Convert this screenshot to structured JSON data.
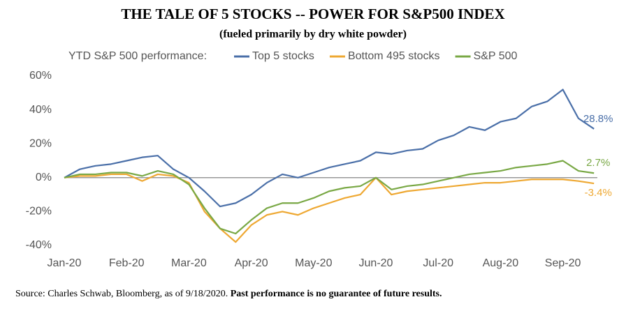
{
  "chart_data": {
    "type": "line",
    "title": "THE TALE OF 5 STOCKS -- POWER FOR S&P500 INDEX",
    "subtitle": "(fueled primarily by dry white powder)",
    "legend_title": "YTD S&P 500 performance:",
    "categories": [
      "Jan-20",
      null,
      null,
      null,
      "Feb-20",
      null,
      null,
      null,
      "Mar-20",
      null,
      null,
      null,
      "Apr-20",
      null,
      null,
      null,
      "May-20",
      null,
      null,
      null,
      "Jun-20",
      null,
      null,
      null,
      "Jul-20",
      null,
      null,
      null,
      "Aug-20",
      null,
      null,
      null,
      "Sep-20",
      null,
      null
    ],
    "series": [
      {
        "name": "Top 5 stocks",
        "color": "#4a6fa8",
        "values": [
          0,
          5,
          7,
          8,
          10,
          12,
          13,
          5,
          0,
          -8,
          -17,
          -15,
          -10,
          -3,
          2,
          0,
          3,
          6,
          8,
          10,
          15,
          14,
          16,
          17,
          22,
          25,
          30,
          28,
          33,
          35,
          42,
          45,
          52,
          35,
          28.8
        ],
        "value_labels": [
          null,
          null,
          null,
          null,
          null,
          null,
          null,
          null,
          null,
          null,
          null,
          null,
          null,
          null,
          null,
          null,
          null,
          null,
          null,
          null,
          null,
          null,
          null,
          null,
          null,
          null,
          null,
          null,
          null,
          null,
          null,
          null,
          null,
          null,
          "28.8%"
        ]
      },
      {
        "name": "Bottom 495 stocks",
        "color": "#eea832",
        "values": [
          0,
          1,
          1,
          2,
          2,
          -2,
          2,
          1,
          -3,
          -20,
          -30,
          -38,
          -28,
          -22,
          -20,
          -22,
          -18,
          -15,
          -12,
          -10,
          0,
          -10,
          -8,
          -7,
          -6,
          -5,
          -4,
          -3,
          -3,
          -2,
          -1,
          -1,
          -1,
          -2,
          -3.4
        ],
        "value_labels": [
          null,
          null,
          null,
          null,
          null,
          null,
          null,
          null,
          null,
          null,
          null,
          null,
          null,
          null,
          null,
          null,
          null,
          null,
          null,
          null,
          null,
          null,
          null,
          null,
          null,
          null,
          null,
          null,
          null,
          null,
          null,
          null,
          null,
          null,
          "-3.4%"
        ]
      },
      {
        "name": "S&P 500",
        "color": "#79a845",
        "values": [
          0,
          2,
          2,
          3,
          3,
          1,
          4,
          2,
          -4,
          -18,
          -30,
          -33,
          -25,
          -18,
          -15,
          -15,
          -12,
          -8,
          -6,
          -5,
          0,
          -7,
          -5,
          -4,
          -2,
          0,
          2,
          3,
          4,
          6,
          7,
          8,
          10,
          4,
          2.7
        ],
        "value_labels": [
          null,
          null,
          null,
          null,
          null,
          null,
          null,
          null,
          null,
          null,
          null,
          null,
          null,
          null,
          null,
          null,
          null,
          null,
          null,
          null,
          null,
          null,
          null,
          null,
          null,
          null,
          null,
          null,
          null,
          null,
          null,
          null,
          null,
          null,
          "2.7%"
        ]
      }
    ],
    "ylim": [
      -40,
      60
    ],
    "yticks": [
      {
        "value": -40,
        "label": "-40%"
      },
      {
        "value": -20,
        "label": "-20%"
      },
      {
        "value": 0,
        "label": "0%"
      },
      {
        "value": 20,
        "label": "20%"
      },
      {
        "value": 40,
        "label": "40%"
      },
      {
        "value": 60,
        "label": "60%"
      }
    ],
    "grid": false,
    "source": "Source: Charles Schwab, Bloomberg, as of 9/18/2020.",
    "source_note": "Past performance is no guarantee of future results."
  }
}
